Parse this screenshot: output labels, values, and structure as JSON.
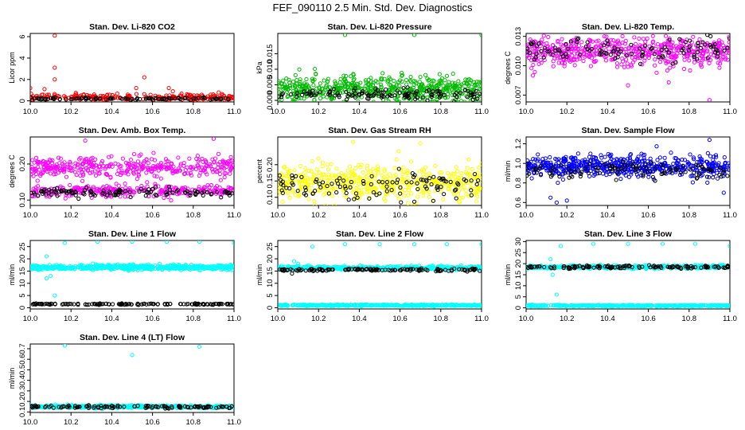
{
  "title": "FEF_090110  2.5 Min. Std. Dev. Diagnostics",
  "chart_data": [
    {
      "type": "scatter",
      "title": "Stan. Dev. Li-820 CO2",
      "ylabel": "Licor ppm",
      "xlim": [
        10.0,
        11.0
      ],
      "ylim": [
        -0.1,
        6.3
      ],
      "xticks": [
        "10.0",
        "10.2",
        "10.4",
        "10.6",
        "10.8",
        "11.0"
      ],
      "yticks": [
        "0",
        "2",
        "4",
        "6"
      ],
      "series": [
        {
          "name": "red",
          "color": "#ff0000",
          "base": 0.35,
          "spread": 0.25,
          "count": 230
        },
        {
          "name": "black",
          "color": "#000000",
          "base": 0.2,
          "spread": 0.08,
          "count": 100
        }
      ],
      "outliers": [
        {
          "x": 10.12,
          "y": 6.1,
          "color": "#ff0000"
        },
        {
          "x": 10.12,
          "y": 3.1,
          "color": "#ff0000"
        },
        {
          "x": 10.12,
          "y": 2.0,
          "color": "#ff0000"
        },
        {
          "x": 10.07,
          "y": 1.1,
          "color": "#ff0000"
        },
        {
          "x": 10.56,
          "y": 2.2,
          "color": "#ff0000"
        },
        {
          "x": 10.52,
          "y": 1.2,
          "color": "#ff0000"
        },
        {
          "x": 10.68,
          "y": 1.2,
          "color": "#ff0000"
        },
        {
          "x": 10.0,
          "y": 1.2,
          "color": "#ff0000"
        },
        {
          "x": 10.7,
          "y": 0.9,
          "color": "#ff0000"
        }
      ]
    },
    {
      "type": "scatter",
      "title": "Stan. Dev. Li-820 Pressure",
      "ylabel": "kPa",
      "xlim": [
        10.0,
        11.0
      ],
      "ylim": [
        -0.0005,
        0.0215
      ],
      "xticks": [
        "10.0",
        "10.2",
        "10.4",
        "10.6",
        "10.8",
        "11.0"
      ],
      "yticks": [
        "0.000",
        "0.005",
        "0.010",
        "0.015"
      ],
      "series": [
        {
          "name": "green",
          "color": "#00bb00",
          "base": 0.0035,
          "spread": 0.0035,
          "count": 560
        },
        {
          "name": "black",
          "color": "#000000",
          "base": 0.002,
          "spread": 0.0015,
          "count": 120
        }
      ],
      "outliers": [
        {
          "x": 10.33,
          "y": 0.021,
          "color": "#00bb00"
        },
        {
          "x": 10.67,
          "y": 0.021,
          "color": "#00bb00"
        },
        {
          "x": 11.0,
          "y": 0.021,
          "color": "#00bb00"
        }
      ]
    },
    {
      "type": "scatter",
      "title": "Stan. Dev. Li-820 Temp.",
      "ylabel": "degrees C",
      "xlim": [
        10.0,
        11.0
      ],
      "ylim": [
        0.0063,
        0.0133
      ],
      "xticks": [
        "10.0",
        "10.2",
        "10.4",
        "10.6",
        "10.8",
        "11.0"
      ],
      "yticks": [
        "0.007",
        "0.010",
        "0.013"
      ],
      "series": [
        {
          "name": "magenta",
          "color": "#ff00ff",
          "base": 0.0114,
          "spread": 0.0012,
          "count": 520
        },
        {
          "name": "black",
          "color": "#000000",
          "base": 0.0116,
          "spread": 0.001,
          "count": 110
        }
      ],
      "outliers": [
        {
          "x": 10.9,
          "y": 0.0065,
          "color": "#ff00ff"
        },
        {
          "x": 10.5,
          "y": 0.008,
          "color": "#ff00ff"
        },
        {
          "x": 10.7,
          "y": 0.0083,
          "color": "#ff00ff"
        }
      ]
    },
    {
      "type": "scatter",
      "title": "Stan. Dev. Amb. Box Temp.",
      "ylabel": "degrees C",
      "xlim": [
        10.0,
        11.0
      ],
      "ylim": [
        0.085,
        0.275
      ],
      "xticks": [
        "10.0",
        "10.2",
        "10.4",
        "10.6",
        "10.8",
        "11.0"
      ],
      "yticks": [
        "0.10",
        "0.20"
      ],
      "series": [
        {
          "name": "magenta-upper",
          "color": "#ff00ff",
          "base": 0.19,
          "spread": 0.025,
          "count": 380
        },
        {
          "name": "magenta-lower",
          "color": "#ff00ff",
          "base": 0.125,
          "spread": 0.013,
          "count": 300
        },
        {
          "name": "black",
          "color": "#000000",
          "base": 0.122,
          "spread": 0.009,
          "count": 120
        }
      ],
      "outliers": [
        {
          "x": 10.9,
          "y": 0.27,
          "color": "#ff00ff"
        },
        {
          "x": 10.27,
          "y": 0.265,
          "color": "#ff00ff"
        }
      ]
    },
    {
      "type": "scatter",
      "title": "Stan. Dev. Gas Stream RH",
      "ylabel": "percent",
      "xlim": [
        10.0,
        11.0
      ],
      "ylim": [
        0.075,
        0.285
      ],
      "xticks": [
        "10.0",
        "10.2",
        "10.4",
        "10.6",
        "10.8",
        "11.0"
      ],
      "yticks": [
        "0.10",
        "0.15",
        "0.20"
      ],
      "series": [
        {
          "name": "yellow",
          "color": "#ffff00",
          "base": 0.145,
          "spread": 0.045,
          "count": 520
        },
        {
          "name": "black",
          "color": "#000000",
          "base": 0.135,
          "spread": 0.035,
          "count": 110
        }
      ],
      "outliers": [
        {
          "x": 10.37,
          "y": 0.27,
          "color": "#ffff00"
        },
        {
          "x": 10.7,
          "y": 0.265,
          "color": "#ffff00"
        }
      ]
    },
    {
      "type": "scatter",
      "title": "Stan. Dev. Sample Flow",
      "ylabel": "ml/min",
      "xlim": [
        10.0,
        11.0
      ],
      "ylim": [
        0.57,
        1.27
      ],
      "xticks": [
        "10.0",
        "10.2",
        "10.4",
        "10.6",
        "10.8",
        "11.0"
      ],
      "yticks": [
        "0.6",
        "0.8",
        "1.0",
        "1.2"
      ],
      "series": [
        {
          "name": "blue",
          "color": "#0000ff",
          "base": 0.97,
          "spread": 0.09,
          "count": 560
        },
        {
          "name": "black",
          "color": "#000000",
          "base": 0.93,
          "spread": 0.07,
          "count": 110
        }
      ],
      "outliers": [
        {
          "x": 10.9,
          "y": 1.24,
          "color": "#0000ff"
        },
        {
          "x": 10.15,
          "y": 0.6,
          "color": "#0000ff"
        },
        {
          "x": 10.12,
          "y": 0.65,
          "color": "#0000ff"
        },
        {
          "x": 10.2,
          "y": 0.62,
          "color": "#0000ff"
        },
        {
          "x": 10.97,
          "y": 0.7,
          "color": "#0000ff"
        }
      ]
    },
    {
      "type": "scatter",
      "title": "Stan. Dev. Line 1 Flow",
      "ylabel": "ml/min",
      "xlim": [
        10.0,
        11.0
      ],
      "ylim": [
        -0.5,
        27.5
      ],
      "xticks": [
        "10.0",
        "10.2",
        "10.4",
        "10.6",
        "10.8",
        "11.0"
      ],
      "yticks": [
        "0",
        "5",
        "10",
        "15",
        "20",
        "25"
      ],
      "series": [
        {
          "name": "cyan",
          "color": "#00ffff",
          "base": 16.5,
          "spread": 0.8,
          "count": 600
        },
        {
          "name": "black",
          "color": "#000000",
          "base": 1.5,
          "spread": 0.2,
          "count": 130
        }
      ],
      "outliers": [
        {
          "x": 10.08,
          "y": 21.0,
          "color": "#00ffff"
        },
        {
          "x": 10.08,
          "y": 12.0,
          "color": "#00ffff"
        },
        {
          "x": 10.12,
          "y": 5.0,
          "color": "#00ffff"
        },
        {
          "x": 10.1,
          "y": 13.0,
          "color": "#00ffff"
        },
        {
          "x": 10.17,
          "y": 26.5,
          "color": "#00ffff"
        },
        {
          "x": 10.33,
          "y": 27.0,
          "color": "#00ffff"
        },
        {
          "x": 10.5,
          "y": 27.0,
          "color": "#00ffff"
        },
        {
          "x": 10.67,
          "y": 27.0,
          "color": "#00ffff"
        },
        {
          "x": 10.83,
          "y": 27.0,
          "color": "#00ffff"
        },
        {
          "x": 11.0,
          "y": 26.5,
          "color": "#00ffff"
        }
      ]
    },
    {
      "type": "scatter",
      "title": "Stan. Dev. Line 2 Flow",
      "ylabel": "ml/min",
      "xlim": [
        10.0,
        11.0
      ],
      "ylim": [
        -0.5,
        27.5
      ],
      "xticks": [
        "10.0",
        "10.2",
        "10.4",
        "10.6",
        "10.8",
        "11.0"
      ],
      "yticks": [
        "0",
        "5",
        "10",
        "15",
        "20",
        "25"
      ],
      "series": [
        {
          "name": "cyan-upper",
          "color": "#00ffff",
          "base": 16.3,
          "spread": 0.6,
          "count": 420
        },
        {
          "name": "cyan-lower",
          "color": "#00ffff",
          "base": 1.0,
          "spread": 0.25,
          "count": 420
        },
        {
          "name": "black",
          "color": "#000000",
          "base": 15.5,
          "spread": 0.4,
          "count": 130
        }
      ],
      "outliers": [
        {
          "x": 10.08,
          "y": 19.0,
          "color": "#00ffff"
        },
        {
          "x": 10.1,
          "y": 18.0,
          "color": "#00ffff"
        },
        {
          "x": 10.07,
          "y": 14.0,
          "color": "#000000"
        },
        {
          "x": 10.17,
          "y": 25.0,
          "color": "#00ffff"
        },
        {
          "x": 10.33,
          "y": 26.0,
          "color": "#00ffff"
        },
        {
          "x": 10.5,
          "y": 26.0,
          "color": "#00ffff"
        },
        {
          "x": 10.67,
          "y": 26.0,
          "color": "#00ffff"
        },
        {
          "x": 10.83,
          "y": 26.0,
          "color": "#00ffff"
        },
        {
          "x": 11.0,
          "y": 26.0,
          "color": "#00ffff"
        }
      ]
    },
    {
      "type": "scatter",
      "title": "Stan. Dev. Line 3 Flow",
      "ylabel": "ml/min",
      "xlim": [
        10.0,
        11.0
      ],
      "ylim": [
        -0.5,
        30.5
      ],
      "xticks": [
        "10.0",
        "10.2",
        "10.4",
        "10.6",
        "10.8",
        "11.0"
      ],
      "yticks": [
        "0",
        "5",
        "10",
        "15",
        "20",
        "25",
        "30"
      ],
      "series": [
        {
          "name": "cyan-upper",
          "color": "#00ffff",
          "base": 18.5,
          "spread": 0.6,
          "count": 420
        },
        {
          "name": "cyan-lower",
          "color": "#00ffff",
          "base": 1.0,
          "spread": 0.25,
          "count": 420
        },
        {
          "name": "black",
          "color": "#000000",
          "base": 18.5,
          "spread": 0.5,
          "count": 130
        }
      ],
      "outliers": [
        {
          "x": 10.12,
          "y": 22.0,
          "color": "#00ffff"
        },
        {
          "x": 10.13,
          "y": 15.0,
          "color": "#00ffff"
        },
        {
          "x": 10.15,
          "y": 6.0,
          "color": "#00ffff"
        },
        {
          "x": 10.17,
          "y": 28.0,
          "color": "#00ffff"
        },
        {
          "x": 10.33,
          "y": 29.0,
          "color": "#00ffff"
        },
        {
          "x": 10.5,
          "y": 29.0,
          "color": "#00ffff"
        },
        {
          "x": 10.67,
          "y": 29.0,
          "color": "#00ffff"
        },
        {
          "x": 10.83,
          "y": 29.0,
          "color": "#00ffff"
        },
        {
          "x": 11.0,
          "y": 28.0,
          "color": "#00ffff"
        }
      ]
    },
    {
      "type": "scatter",
      "title": "Stan. Dev. Line 4 (LT) Flow",
      "ylabel": "ml/min",
      "xlim": [
        10.0,
        11.0
      ],
      "ylim": [
        0.095,
        0.745
      ],
      "xticks": [
        "10.0",
        "10.2",
        "10.4",
        "10.6",
        "10.8",
        "11.0"
      ],
      "yticks": [
        "0.1",
        "0.2",
        "0.3",
        "0.4",
        "0.5",
        "0.6",
        "0.7"
      ],
      "series": [
        {
          "name": "cyan",
          "color": "#00ffff",
          "base": 0.15,
          "spread": 0.01,
          "count": 560
        },
        {
          "name": "black",
          "color": "#000000",
          "base": 0.15,
          "spread": 0.012,
          "count": 120
        }
      ],
      "outliers": [
        {
          "x": 10.17,
          "y": 0.73,
          "color": "#00ffff"
        },
        {
          "x": 10.5,
          "y": 0.64,
          "color": "#00ffff"
        },
        {
          "x": 10.83,
          "y": 0.72,
          "color": "#00ffff"
        }
      ]
    }
  ]
}
